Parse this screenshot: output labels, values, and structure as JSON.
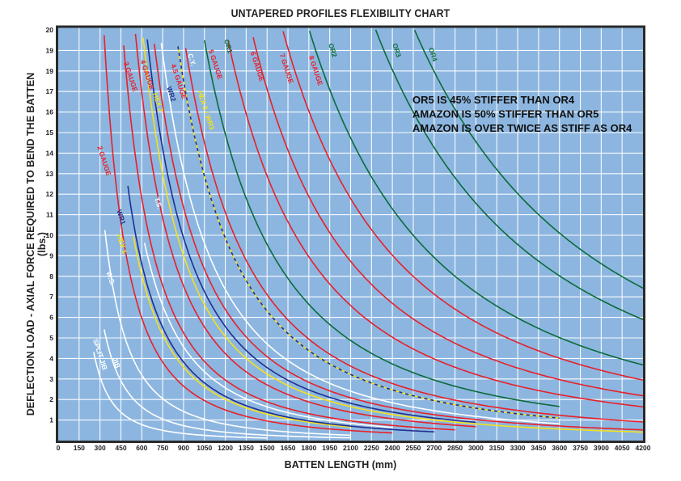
{
  "chart_data": {
    "type": "line",
    "title": "UNTAPERED PROFILES FLEXIBILITY CHART",
    "xlabel": "BATTEN LENGTH (mm)",
    "ylabel": "DEFLECTION LOAD - AXIAL FORCE REQUIRED TO BEND THE BATTEN (lbs.)",
    "xlim": [
      0,
      4200
    ],
    "ylim": [
      0,
      20
    ],
    "grid": true,
    "x_ticks": [
      "0",
      "150",
      "300",
      "450",
      "600",
      "750",
      "900",
      "1050",
      "1200",
      "1350",
      "1500",
      "1650",
      "1800",
      "1950",
      "2100",
      "2250",
      "2400",
      "2550",
      "2700",
      "2850",
      "3000",
      "3150",
      "3300",
      "3450",
      "3600",
      "3750",
      "3900",
      "4050",
      "4200"
    ],
    "y_ticks": [
      "20",
      "19",
      "19",
      "17",
      "16",
      "15",
      "14",
      "13",
      "12",
      "11",
      "10",
      "9",
      "8",
      "7",
      "6",
      "5",
      "4",
      "3",
      "2",
      "1"
    ],
    "annotations": [
      "OR5 IS 45% STIFFER THAN OR4",
      "AMAZON IS 50% STIFFER THAN OR5",
      "AMAZON IS OVER TWICE AS STIFF AS OR4"
    ],
    "series": [
      {
        "name": "SPLIT JIB",
        "color": "#ffffff",
        "style": "solid",
        "k": 280000,
        "x_start": 255,
        "x_end": 1500,
        "label_x": 250,
        "label_y": 4.9
      },
      {
        "name": "JIB",
        "color": "#ffffff",
        "style": "solid",
        "k": 590000,
        "x_start": 330,
        "x_end": 2100,
        "label_x": 390,
        "label_y": 4.0
      },
      {
        "name": "W.S.",
        "color": "#ffffff",
        "style": "solid",
        "k": 1150000,
        "x_start": 335,
        "x_end": 2100,
        "label_x": 345,
        "label_y": 8.2
      },
      {
        "name": "2 GAUGE",
        "color": "#e8202a",
        "style": "solid",
        "k": 2150000,
        "x_start": 330,
        "x_end": 2400,
        "label_x": 280,
        "label_y": 14.3
      },
      {
        "name": "HEX 1",
        "color": "#f4e11c",
        "style": "solid",
        "k": 2900000,
        "x_start": 540,
        "x_end": 2100,
        "label_x": 420,
        "label_y": 10.0
      },
      {
        "name": "WR1",
        "color": "#1f2f8f",
        "style": "solid",
        "k": 3100000,
        "x_start": 500,
        "x_end": 2700,
        "label_x": 420,
        "label_y": 11.2
      },
      {
        "name": "T.S.",
        "color": "#ffffff",
        "style": "solid",
        "k": 3700000,
        "x_start": 620,
        "x_end": 2400,
        "label_x": 690,
        "label_y": 11.8
      },
      {
        "name": "3 GAUGE",
        "color": "#e8202a",
        "style": "solid",
        "k": 4250000,
        "x_start": 455,
        "x_end": 2850,
        "label_x": 470,
        "label_y": 18.4
      },
      {
        "name": "4 GAUGE",
        "color": "#e8202a",
        "style": "solid",
        "k": 6100000,
        "x_start": 555,
        "x_end": 3000,
        "label_x": 590,
        "label_y": 18.5
      },
      {
        "name": "HEX 2",
        "color": "#f4e11c",
        "style": "solid",
        "k": 7300000,
        "x_start": 610,
        "x_end": 4200,
        "label_x": 680,
        "label_y": 16.9
      },
      {
        "name": "WR2",
        "color": "#1f2f8f",
        "style": "solid",
        "k": 8000000,
        "x_start": 625,
        "x_end": 3000,
        "label_x": 780,
        "label_y": 17.2
      },
      {
        "name": "4.5 GAUGE",
        "color": "#e8202a",
        "style": "solid",
        "k": 9200000,
        "x_start": 690,
        "x_end": 4200,
        "label_x": 810,
        "label_y": 18.3
      },
      {
        "name": "C.Y.",
        "color": "#ffffff",
        "style": "solid",
        "k": 10600000,
        "x_start": 740,
        "x_end": 3600,
        "label_x": 930,
        "label_y": 18.8
      },
      {
        "name": "HEX 3 / WR3",
        "color": "#f4e11c",
        "dash_color": "#1f2f8f",
        "style": "dashed",
        "k": 14200000,
        "x_start": 860,
        "x_end": 3600,
        "label_x": 1000,
        "label_y": 17.0
      },
      {
        "name": "5 GAUGE",
        "color": "#e8202a",
        "style": "solid",
        "k": 16000000,
        "x_start": 915,
        "x_end": 4200,
        "label_x": 1080,
        "label_y": 19.0
      },
      {
        "name": "OR1",
        "color": "#0b6b3a",
        "style": "solid",
        "k": 21500000,
        "x_start": 1050,
        "x_end": 3600,
        "label_x": 1190,
        "label_y": 19.5
      },
      {
        "name": "6 GAUGE",
        "color": "#e8202a",
        "style": "solid",
        "k": 29000000,
        "x_start": 1220,
        "x_end": 4200,
        "label_x": 1380,
        "label_y": 18.9
      },
      {
        "name": "7 GAUGE",
        "color": "#e8202a",
        "style": "solid",
        "k": 38500000,
        "x_start": 1400,
        "x_end": 4200,
        "label_x": 1590,
        "label_y": 18.8
      },
      {
        "name": "8 GAUGE",
        "color": "#e8202a",
        "style": "solid",
        "k": 52000000,
        "x_start": 1615,
        "x_end": 4200,
        "label_x": 1800,
        "label_y": 18.7
      },
      {
        "name": "OR2",
        "color": "#0b6b3a",
        "style": "solid",
        "k": 65000000,
        "x_start": 1805,
        "x_end": 4200,
        "label_x": 1940,
        "label_y": 19.3
      },
      {
        "name": "OR3",
        "color": "#0b6b3a",
        "style": "solid",
        "k": 104000000,
        "x_start": 2280,
        "x_end": 4200,
        "label_x": 2400,
        "label_y": 19.3
      },
      {
        "name": "OR4",
        "color": "#0b6b3a",
        "style": "solid",
        "k": 131000000,
        "x_start": 2560,
        "x_end": 4200,
        "label_x": 2660,
        "label_y": 19.1
      }
    ]
  },
  "page": {
    "title": "UNTAPERED PROFILES FLEXIBILITY CHART",
    "xlabel": "BATTEN LENGTH (mm)",
    "ylabel": "DEFLECTION LOAD - AXIAL FORCE REQUIRED TO BEND THE BATTEN (lbs.)"
  },
  "colors": {
    "plot_bg": "#8cb6e0",
    "grid": "#ffffff",
    "frame": "#2a2a2a"
  }
}
